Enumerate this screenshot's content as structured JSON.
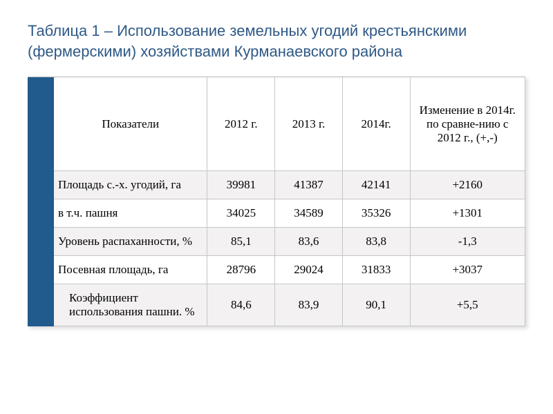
{
  "title": "Таблица 1 – Использование земельных угодий крестьянскими (фермерскими) хозяйствами Курманаевского района",
  "table": {
    "type": "table",
    "sidebar_color": "#215b8e",
    "border_color": "#c6c6c6",
    "row_bg_odd": "#f3f1f1",
    "row_bg_even": "#ffffff",
    "title_color": "#2f5986",
    "title_fontsize": 22,
    "body_fontsize": 17,
    "columns": [
      {
        "label": "Показатели",
        "align": "center"
      },
      {
        "label": "2012 г.",
        "align": "center"
      },
      {
        "label": "2013 г.",
        "align": "center"
      },
      {
        "label": "2014г.",
        "align": "center"
      },
      {
        "label": "Изменение в 2014г. по сравне-нию с 2012 г., (+,-)",
        "align": "center"
      }
    ],
    "rows": [
      {
        "indicator": "Площадь с.-х. угодий, га",
        "y2012": "39981",
        "y2013": "41387",
        "y2014": "42141",
        "change": "+2160",
        "indent": false
      },
      {
        "indicator": "в т.ч. пашня",
        "y2012": "34025",
        "y2013": "34589",
        "y2014": "35326",
        "change": "+1301",
        "indent": false
      },
      {
        "indicator": "Уровень распаханности, %",
        "y2012": "85,1",
        "y2013": "83,6",
        "y2014": "83,8",
        "change": "-1,3",
        "indent": false
      },
      {
        "indicator": "Посевная площадь, га",
        "y2012": "28796",
        "y2013": "29024",
        "y2014": "31833",
        "change": "+3037",
        "indent": false
      },
      {
        "indicator": "Коэффициент использования пашни. %",
        "y2012": "84,6",
        "y2013": "83,9",
        "y2014": "90,1",
        "change": "+5,5",
        "indent": true
      }
    ]
  }
}
